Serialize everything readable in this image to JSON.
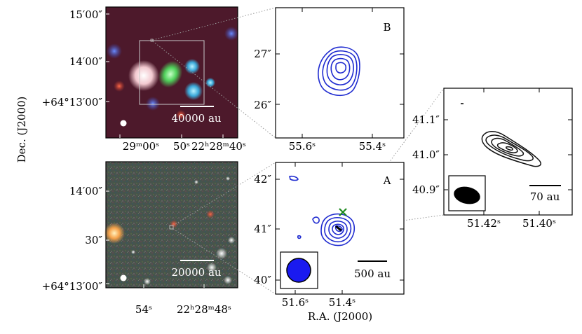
{
  "figure": {
    "y_axis_label": "Dec. (J2000)",
    "x_axis_label": "R.A. (J2000)"
  },
  "top_left": {
    "dec_ticks": [
      "15′00″",
      "14′00″",
      "+64°13′00″"
    ],
    "ra_ticks": [
      "29ᵐ00ˢ",
      "50ˢ",
      "22ʰ28ᵐ40ˢ"
    ],
    "scalebar": "40000 au"
  },
  "bottom_left": {
    "dec_ticks": [
      "14′00″",
      "30″",
      "+64°13′00″"
    ],
    "ra_ticks": [
      "54ˢ",
      "22ʰ28ᵐ48ˢ"
    ],
    "scalebar": "20000 au"
  },
  "panel_b": {
    "label": "B",
    "dec_ticks": [
      "27″",
      "26″"
    ],
    "ra_ticks": [
      "55.6ˢ",
      "55.4ˢ"
    ]
  },
  "panel_a": {
    "label": "A",
    "dec_ticks": [
      "42″",
      "41″",
      "40″"
    ],
    "ra_ticks": [
      "51.6ˢ",
      "51.4ˢ"
    ],
    "scalebar": "500 au"
  },
  "zoom": {
    "dec_ticks": [
      "41.1″",
      "41.0″",
      "40.9″"
    ],
    "ra_ticks": [
      "51.42ˢ",
      "51.40ˢ"
    ],
    "scalebar": "70 au"
  },
  "colors": {
    "contour_blue": "#1f2bd0",
    "beam_blue": "#1a1af0",
    "marker_green": "#1e8a1e"
  }
}
